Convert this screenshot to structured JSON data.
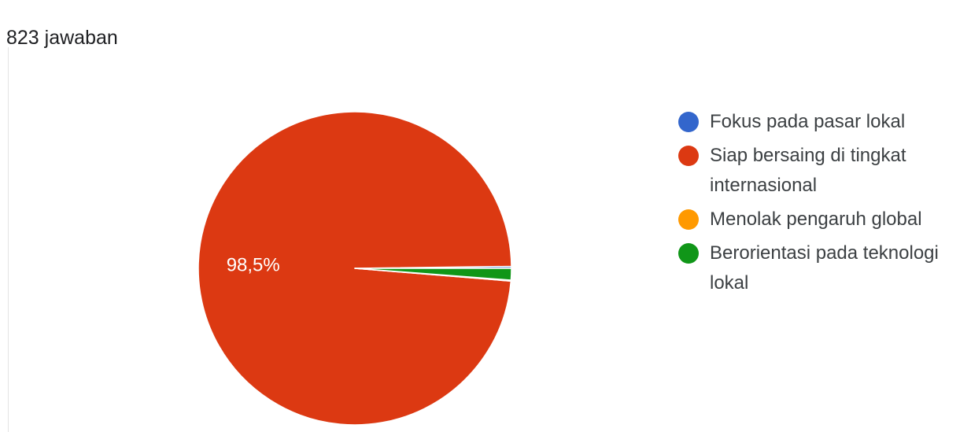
{
  "summary": {
    "response_count": "823 jawaban"
  },
  "chart_data": {
    "type": "pie",
    "categories": [
      "Fokus pada pasar lokal",
      "Siap bersaing di tingkat internasional",
      "Menolak pengaruh global",
      "Berorientasi pada teknologi lokal"
    ],
    "values": [
      0.2,
      98.5,
      0.1,
      1.2
    ],
    "value_unit": "%",
    "slice_labels": [
      "",
      "98,5%",
      "",
      ""
    ],
    "colors": [
      "#3366cc",
      "#dc3912",
      "#ff9900",
      "#109618"
    ],
    "legend_position": "right"
  }
}
